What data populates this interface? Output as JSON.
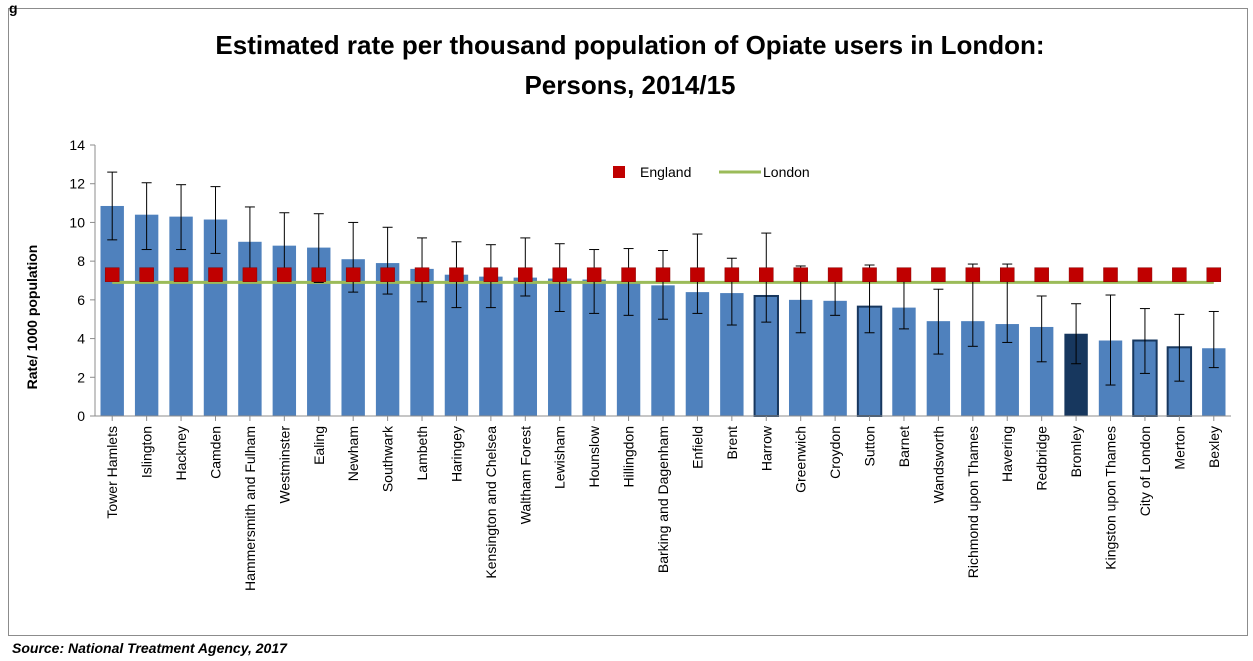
{
  "figure_label": "g",
  "source": "Source: National Treatment Agency, 2017",
  "colors": {
    "bar": "#4f81bd",
    "bar_dark": "#17375e",
    "bar_outline": "#17375e",
    "england_marker": "#c00000",
    "london_line": "#9bbb59",
    "error_bar": "#000000",
    "axis": "#8c8c8c"
  },
  "chart_data": {
    "type": "bar",
    "title": "Estimated rate per thousand population of Opiate users in London:",
    "subtitle": "Persons, 2014/15",
    "xlabel": "",
    "ylabel": "Rate/ 1000 population",
    "ylim": [
      0,
      14
    ],
    "yticks": [
      "0",
      "2",
      "4",
      "6",
      "8",
      "10",
      "12",
      "14"
    ],
    "grid": false,
    "legend": {
      "placement": "top-center",
      "entries": [
        "England",
        "London"
      ]
    },
    "categories": [
      "Tower Hamlets",
      "Islington",
      "Hackney",
      "Camden",
      "Hammersmith and Fulham",
      "Westminster",
      "Ealing",
      "Newham",
      "Southwark",
      "Lambeth",
      "Haringey",
      "Kensington and Chelsea",
      "Waltham Forest",
      "Lewisham",
      "Hounslow",
      "Hillingdon",
      "Barking and Dagenham",
      "Enfield",
      "Brent",
      "Harrow",
      "Greenwich",
      "Croydon",
      "Sutton",
      "Barnet",
      "Wandsworth",
      "Richmond upon Thames",
      "Havering",
      "Redbridge",
      "Bromley",
      "Kingston upon Thames",
      "City of London",
      "Merton",
      "Bexley"
    ],
    "values": [
      10.85,
      10.4,
      10.3,
      10.15,
      9.0,
      8.8,
      8.7,
      8.1,
      7.9,
      7.6,
      7.3,
      7.2,
      7.15,
      7.1,
      7.05,
      6.9,
      6.75,
      6.4,
      6.35,
      6.2,
      6.0,
      5.95,
      5.65,
      5.6,
      4.9,
      4.9,
      4.75,
      4.6,
      4.25,
      3.9,
      3.9,
      3.55,
      3.5
    ],
    "error_low": [
      9.1,
      8.6,
      8.6,
      8.4,
      7.2,
      7.0,
      6.9,
      6.4,
      6.3,
      5.9,
      5.6,
      5.6,
      6.2,
      5.4,
      5.3,
      5.2,
      5.0,
      5.3,
      4.7,
      4.85,
      4.3,
      5.2,
      4.3,
      4.5,
      3.2,
      3.6,
      3.8,
      2.8,
      2.7,
      1.6,
      2.2,
      1.8,
      2.5
    ],
    "error_high": [
      12.6,
      12.05,
      11.95,
      11.85,
      10.8,
      10.5,
      10.45,
      10.0,
      9.75,
      9.2,
      9.0,
      8.85,
      9.2,
      8.9,
      8.6,
      8.65,
      8.55,
      9.4,
      8.15,
      9.45,
      7.75,
      7.4,
      7.8,
      7.4,
      6.55,
      7.85,
      7.85,
      6.2,
      5.8,
      6.25,
      5.55,
      5.25,
      5.4
    ],
    "highlight": [
      "",
      "",
      "",
      "",
      "",
      "",
      "",
      "",
      "",
      "",
      "",
      "",
      "",
      "",
      "",
      "",
      "",
      "",
      "",
      "outline",
      "",
      "",
      "outline",
      "",
      "",
      "",
      "",
      "",
      "dark",
      "",
      "outline",
      "outline",
      ""
    ],
    "series": [
      {
        "name": "England",
        "type": "marker",
        "value": 7.3
      },
      {
        "name": "London",
        "type": "line",
        "value": 6.9
      }
    ]
  }
}
